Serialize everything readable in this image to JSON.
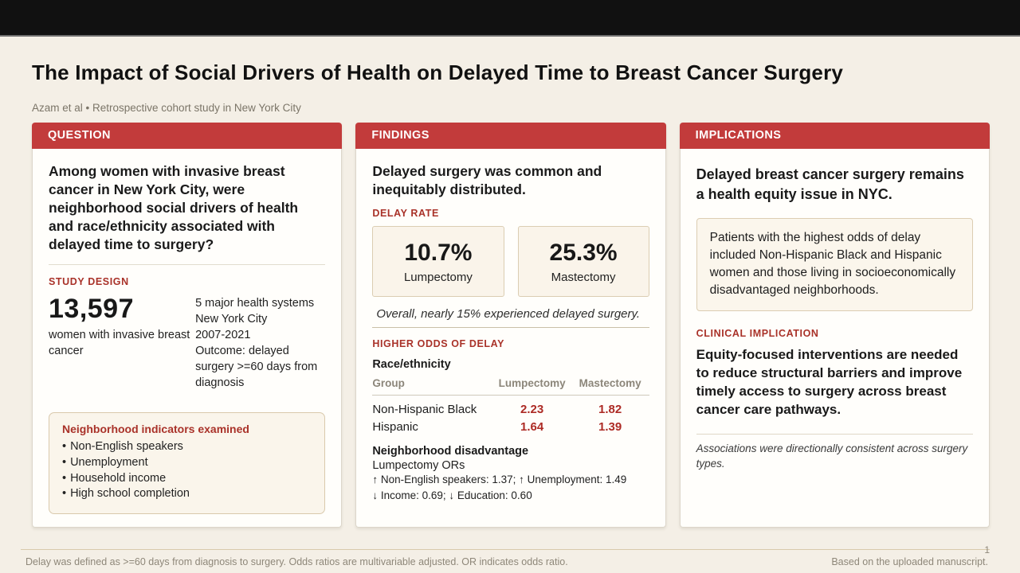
{
  "page": {
    "title": "The Impact of Social Drivers of Health on Delayed Time to Breast Cancer Surgery",
    "subtitle": "Azam et al • Retrospective cohort study in New York City",
    "footer_note": "Delay was defined as >=60 days from diagnosis to surgery. Odds ratios are multivariable adjusted. OR indicates odds ratio.",
    "footer_source": "Based on the uploaded manuscript.",
    "page_number": "1",
    "bullet_char": "•"
  },
  "colors": {
    "header_red": "#C23B3B",
    "label_red": "#A93229",
    "value_red": "#AD2B25",
    "page_background": "#F4EFE6",
    "card_background": "#FFFEFB",
    "cream_box_background": "#FAF5EB",
    "top_bar_black": "#111111"
  },
  "question": {
    "header": "QUESTION",
    "text": "Among women with invasive breast cancer in New York City, were neighborhood social drivers of health and race/ethnicity associated with delayed time to surgery?",
    "study_design_label": "STUDY DESIGN",
    "cohort_n": "13,597",
    "cohort_caption": "women with invasive breast cancer",
    "meta_lines": [
      "5 major health systems",
      "New York City",
      "2007-2021",
      "Outcome: delayed surgery >=60 days from diagnosis"
    ],
    "indicators_title": "Neighborhood indicators examined",
    "indicators": [
      "Non-English speakers",
      "Unemployment",
      "Household income",
      "High school completion"
    ]
  },
  "findings": {
    "header": "FINDINGS",
    "headline": "Delayed surgery was common and inequitably distributed.",
    "delay_rate_label": "DELAY RATE",
    "stats": [
      {
        "value": "10.7%",
        "label": "Lumpectomy"
      },
      {
        "value": "25.3%",
        "label": "Mastectomy"
      }
    ],
    "overall_note": "Overall, nearly 15% experienced delayed surgery.",
    "odds_label": "HIGHER ODDS OF DELAY",
    "race_title": "Race/ethnicity",
    "table": {
      "headers": [
        "Group",
        "Lumpectomy",
        "Mastectomy"
      ],
      "rows": [
        {
          "group": "Non-Hispanic Black",
          "lumpectomy": "2.23",
          "mastectomy": "1.82"
        },
        {
          "group": "Hispanic",
          "lumpectomy": "1.64",
          "mastectomy": "1.39"
        }
      ]
    },
    "neighborhood_title": "Neighborhood disadvantage",
    "neighborhood_sub": "Lumpectomy ORs",
    "neighborhood_lines": [
      "↑ Non-English speakers: 1.37; ↑ Unemployment: 1.49",
      "↓ Income: 0.69; ↓ Education: 0.60"
    ]
  },
  "implications": {
    "header": "IMPLICATIONS",
    "headline": "Delayed breast cancer surgery remains a health equity issue in NYC.",
    "highlight": "Patients with the highest odds of delay included Non-Hispanic Black and Hispanic women and those living in socioeconomically disadvantaged neighborhoods.",
    "clinical_label": "CLINICAL IMPLICATION",
    "clinical_text": "Equity-focused interventions are needed to reduce structural barriers and improve timely access to surgery across breast cancer care pathways.",
    "footnote": "Associations were directionally consistent across surgery types."
  }
}
